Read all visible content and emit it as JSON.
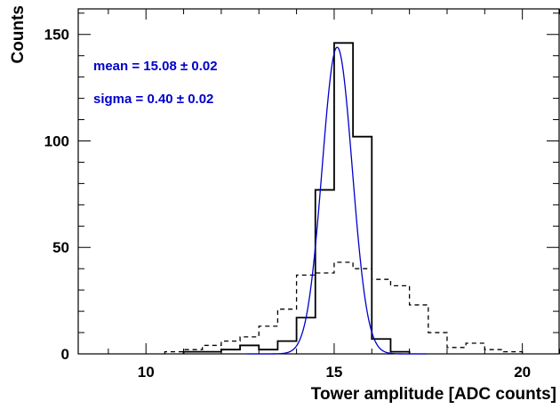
{
  "chart_data": {
    "type": "histogram",
    "xlabel": "Tower amplitude [ADC counts]",
    "ylabel": "Counts",
    "xlim": [
      8.2,
      21
    ],
    "ylim": [
      0,
      162
    ],
    "x_ticks": [
      10,
      15,
      20
    ],
    "y_ticks": [
      0,
      50,
      100,
      150
    ],
    "bin_width": 0.5,
    "series": [
      {
        "style": "solid",
        "color": "#000000",
        "bin_edges": [
          11,
          11.5,
          12,
          12.5,
          13,
          13.5,
          14,
          14.5,
          15,
          15.5,
          16,
          16.5,
          17
        ],
        "counts": [
          1,
          1,
          2,
          4,
          2,
          6,
          17,
          77,
          146,
          102,
          7,
          1
        ]
      },
      {
        "style": "dashed",
        "color": "#000000",
        "bin_edges": [
          10.5,
          11,
          11.5,
          12,
          12.5,
          13,
          13.5,
          14,
          14.5,
          15,
          15.5,
          16,
          16.5,
          17,
          17.5,
          18,
          18.5,
          19,
          19.5,
          20
        ],
        "counts": [
          1,
          2,
          4,
          6,
          8,
          13,
          21,
          37,
          38,
          43,
          40,
          35,
          32,
          23,
          10,
          3,
          5,
          2,
          1
        ]
      },
      {
        "style": "fit",
        "color": "#0000cc",
        "fit_type": "gaussian",
        "mean": 15.08,
        "sigma": 0.4,
        "amplitude": 144
      }
    ],
    "annotations": {
      "mean_text": "mean  = 15.08 ± 0.02",
      "sigma_text": "sigma =   0.40 ± 0.02",
      "color": "#0000cc"
    }
  }
}
